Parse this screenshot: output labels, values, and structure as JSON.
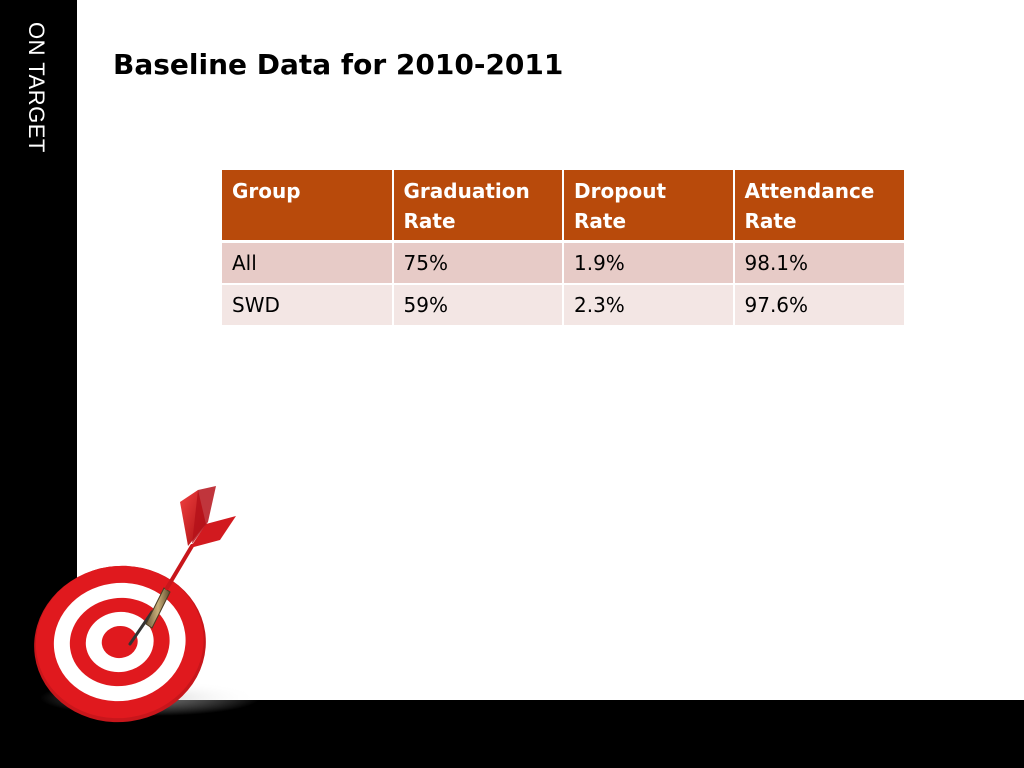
{
  "slide": {
    "side_label": "ON TARGET",
    "title": "Baseline Data for 2010-2011"
  },
  "table": {
    "headers": [
      "Group",
      "Graduation Rate",
      "Dropout Rate",
      "Attendance Rate"
    ],
    "rows": [
      [
        "All",
        "75%",
        "1.9%",
        "98.1%"
      ],
      [
        "SWD",
        "59%",
        "2.3%",
        "97.6%"
      ]
    ]
  },
  "colors": {
    "header_bg": "#b84a0b",
    "row_odd_bg": "#e7cbc7",
    "row_even_bg": "#f3e6e4",
    "frame": "#000000",
    "target_red": "#e0191e"
  },
  "graphic": {
    "icon": "dartboard-with-dart-icon"
  }
}
